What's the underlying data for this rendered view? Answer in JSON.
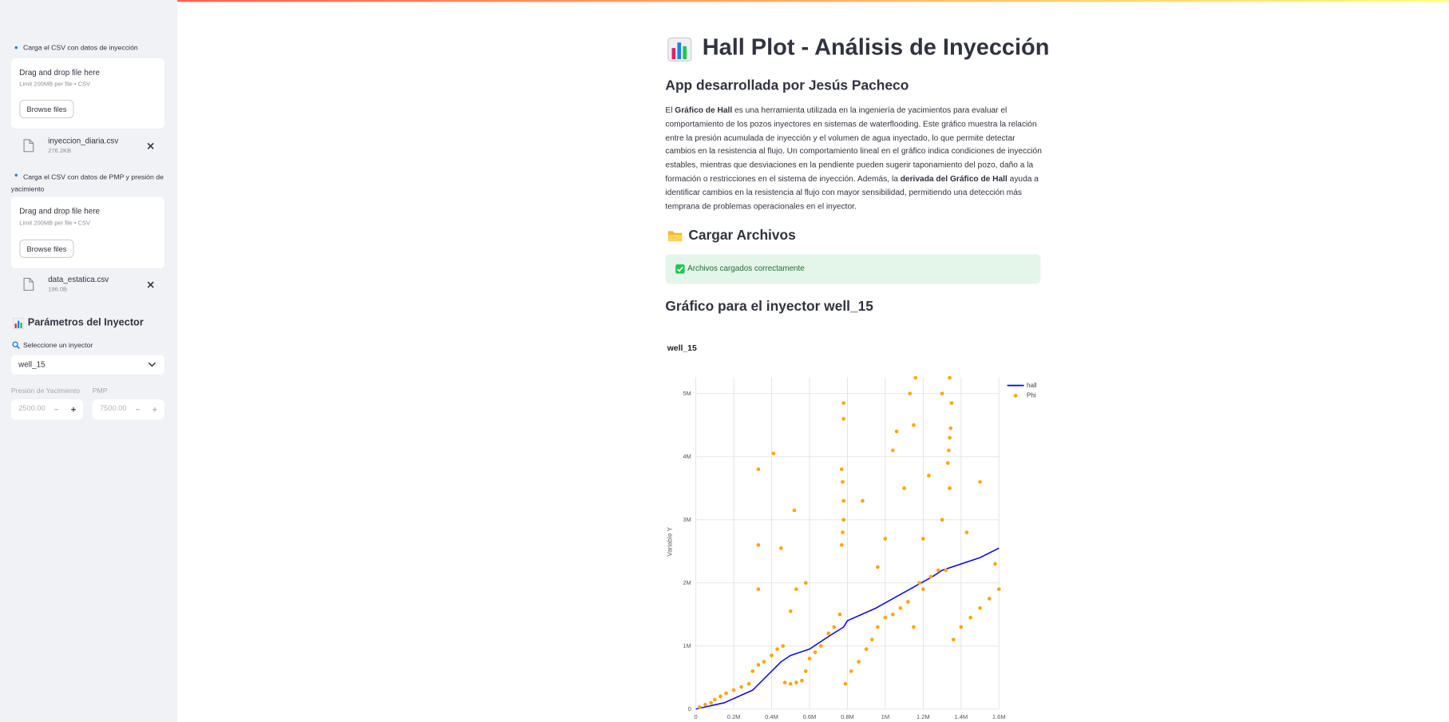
{
  "sidebar": {
    "upload_1": {
      "label": "Carga el CSV con datos de inyección",
      "drop_text": "Drag and drop file here",
      "limit": "Limit 200MB per file • CSV",
      "button": "Browse files",
      "file_name": "inyeccion_diaria.csv",
      "file_size": "276.2KB"
    },
    "upload_2": {
      "label": "Carga el CSV con datos de PMP y presión de yacimiento",
      "drop_text": "Drag and drop file here",
      "limit": "Limit 200MB per file • CSV",
      "button": "Browse files",
      "file_name": "data_estatica.csv",
      "file_size": "196.0B"
    },
    "params_header": "Parámetros del Inyector",
    "select_label": "Seleccione un inyector",
    "select_value": "well_15",
    "inputs": [
      {
        "label": "Presión de Yacimiento",
        "value": "2500.00"
      },
      {
        "label": "PMP",
        "value": "7500.00"
      }
    ]
  },
  "main": {
    "title": "Hall Plot - Análisis de Inyección",
    "subtitle": "App desarrollada por Jesús Pacheco",
    "intro": [
      "El ",
      "Gráfico de Hall",
      " es una herramienta utilizada en la ingeniería de yacimientos para evaluar el comportamiento de los pozos inyectores en sistemas de waterflooding. Este gráfico muestra la relación entre la presión acumulada de inyección y el volumen de agua inyectado, lo que permite detectar cambios en la resistencia al flujo. Un comportamiento lineal en el gráfico indica condiciones de inyección estables, mientras que desviaciones en la pendiente pueden sugerir taponamiento del pozo, daño a la formación o restricciones en el sistema de inyección. Además, la ",
      "derivada del Gráfico de Hall",
      " ayuda a identificar cambios en la resistencia al flujo con mayor sensibilidad, permitiendo una detección más temprana de problemas operacionales en el inyector."
    ],
    "upload_header": "Cargar Archivos",
    "success": "Archivos cargados correctamente",
    "chart_header": "Gráfico para el inyector well_15"
  },
  "chart_data": {
    "type": "scatter",
    "title": "well_15",
    "y_label": "Variable Y",
    "xlim": [
      0,
      1600000
    ],
    "ylim": [
      0,
      5260000
    ],
    "xticks": [
      0,
      {
        "value": 200000,
        "label": "0.2M"
      },
      {
        "value": 400000,
        "label": "0.4M"
      },
      {
        "value": 600000,
        "label": "0.6M"
      },
      {
        "value": 800000,
        "label": "0.8M"
      },
      {
        "value": 1000000,
        "label": "1M"
      },
      {
        "value": 1200000,
        "label": "1.2M"
      },
      {
        "value": 1400000,
        "label": "1.4M"
      },
      {
        "value": 1600000,
        "label": "1.6M"
      }
    ],
    "yticks": [
      0,
      {
        "value": 1000000,
        "label": "1M"
      },
      {
        "value": 2000000,
        "label": "2M"
      },
      {
        "value": 3000000,
        "label": "3M"
      },
      {
        "value": 4000000,
        "label": "4M"
      },
      {
        "value": 5000000,
        "label": "5M"
      }
    ],
    "grid": true,
    "legend": "top-right",
    "series": [
      {
        "name": "hall",
        "color": "#0000ff",
        "mode": "lines",
        "x": [
          0,
          150000,
          300000,
          350000,
          450000,
          500000,
          600000,
          700000,
          780000,
          800000,
          950000,
          1100000,
          1250000,
          1300000,
          1400000,
          1500000,
          1600000
        ],
        "values": [
          0,
          100000,
          300000,
          450000,
          750000,
          850000,
          950000,
          1150000,
          1300000,
          1400000,
          1600000,
          1850000,
          2100000,
          2200000,
          2300000,
          2400000,
          2550000
        ]
      },
      {
        "name": "Phi",
        "color": "#ffa500",
        "mode": "markers",
        "x": [
          20000,
          50000,
          80000,
          100000,
          130000,
          160000,
          200000,
          240000,
          280000,
          300000,
          330000,
          360000,
          400000,
          430000,
          460000,
          330000,
          410000,
          330000,
          330000,
          450000,
          520000,
          530000,
          580000,
          500000,
          470000,
          500000,
          530000,
          560000,
          580000,
          600000,
          630000,
          660000,
          700000,
          730000,
          760000,
          770000,
          775000,
          780000,
          780000,
          775000,
          770000,
          780000,
          780000,
          790000,
          820000,
          860000,
          900000,
          930000,
          960000,
          1000000,
          1040000,
          1080000,
          1120000,
          1150000,
          880000,
          960000,
          1000000,
          1040000,
          1060000,
          1100000,
          1130000,
          1150000,
          1160000,
          1200000,
          1230000,
          1180000,
          1200000,
          1240000,
          1280000,
          1320000,
          1300000,
          1330000,
          1335000,
          1340000,
          1345000,
          1350000,
          1340000,
          1300000,
          1340000,
          1360000,
          1400000,
          1450000,
          1500000,
          1550000,
          1600000,
          1580000,
          1500000,
          1430000
        ],
        "values": [
          30000,
          70000,
          100000,
          150000,
          200000,
          250000,
          300000,
          350000,
          400000,
          600000,
          700000,
          750000,
          850000,
          950000,
          1000000,
          3800000,
          4050000,
          2600000,
          1900000,
          2550000,
          3150000,
          1900000,
          2000000,
          1550000,
          420000,
          400000,
          420000,
          450000,
          600000,
          800000,
          900000,
          1000000,
          1200000,
          1300000,
          1500000,
          2600000,
          2800000,
          3000000,
          3300000,
          3600000,
          3800000,
          4850000,
          4600000,
          400000,
          600000,
          750000,
          950000,
          1100000,
          1300000,
          1450000,
          1500000,
          1600000,
          1700000,
          1300000,
          3300000,
          2250000,
          2700000,
          4100000,
          4400000,
          3500000,
          5000000,
          4500000,
          5250000,
          2700000,
          3700000,
          2000000,
          1900000,
          2100000,
          2200000,
          2200000,
          3000000,
          3900000,
          4100000,
          4300000,
          4450000,
          4850000,
          5250000,
          5000000,
          3500000,
          1100000,
          1300000,
          1450000,
          1600000,
          1750000,
          1900000,
          2300000,
          3600000,
          2800000
        ]
      }
    ]
  }
}
